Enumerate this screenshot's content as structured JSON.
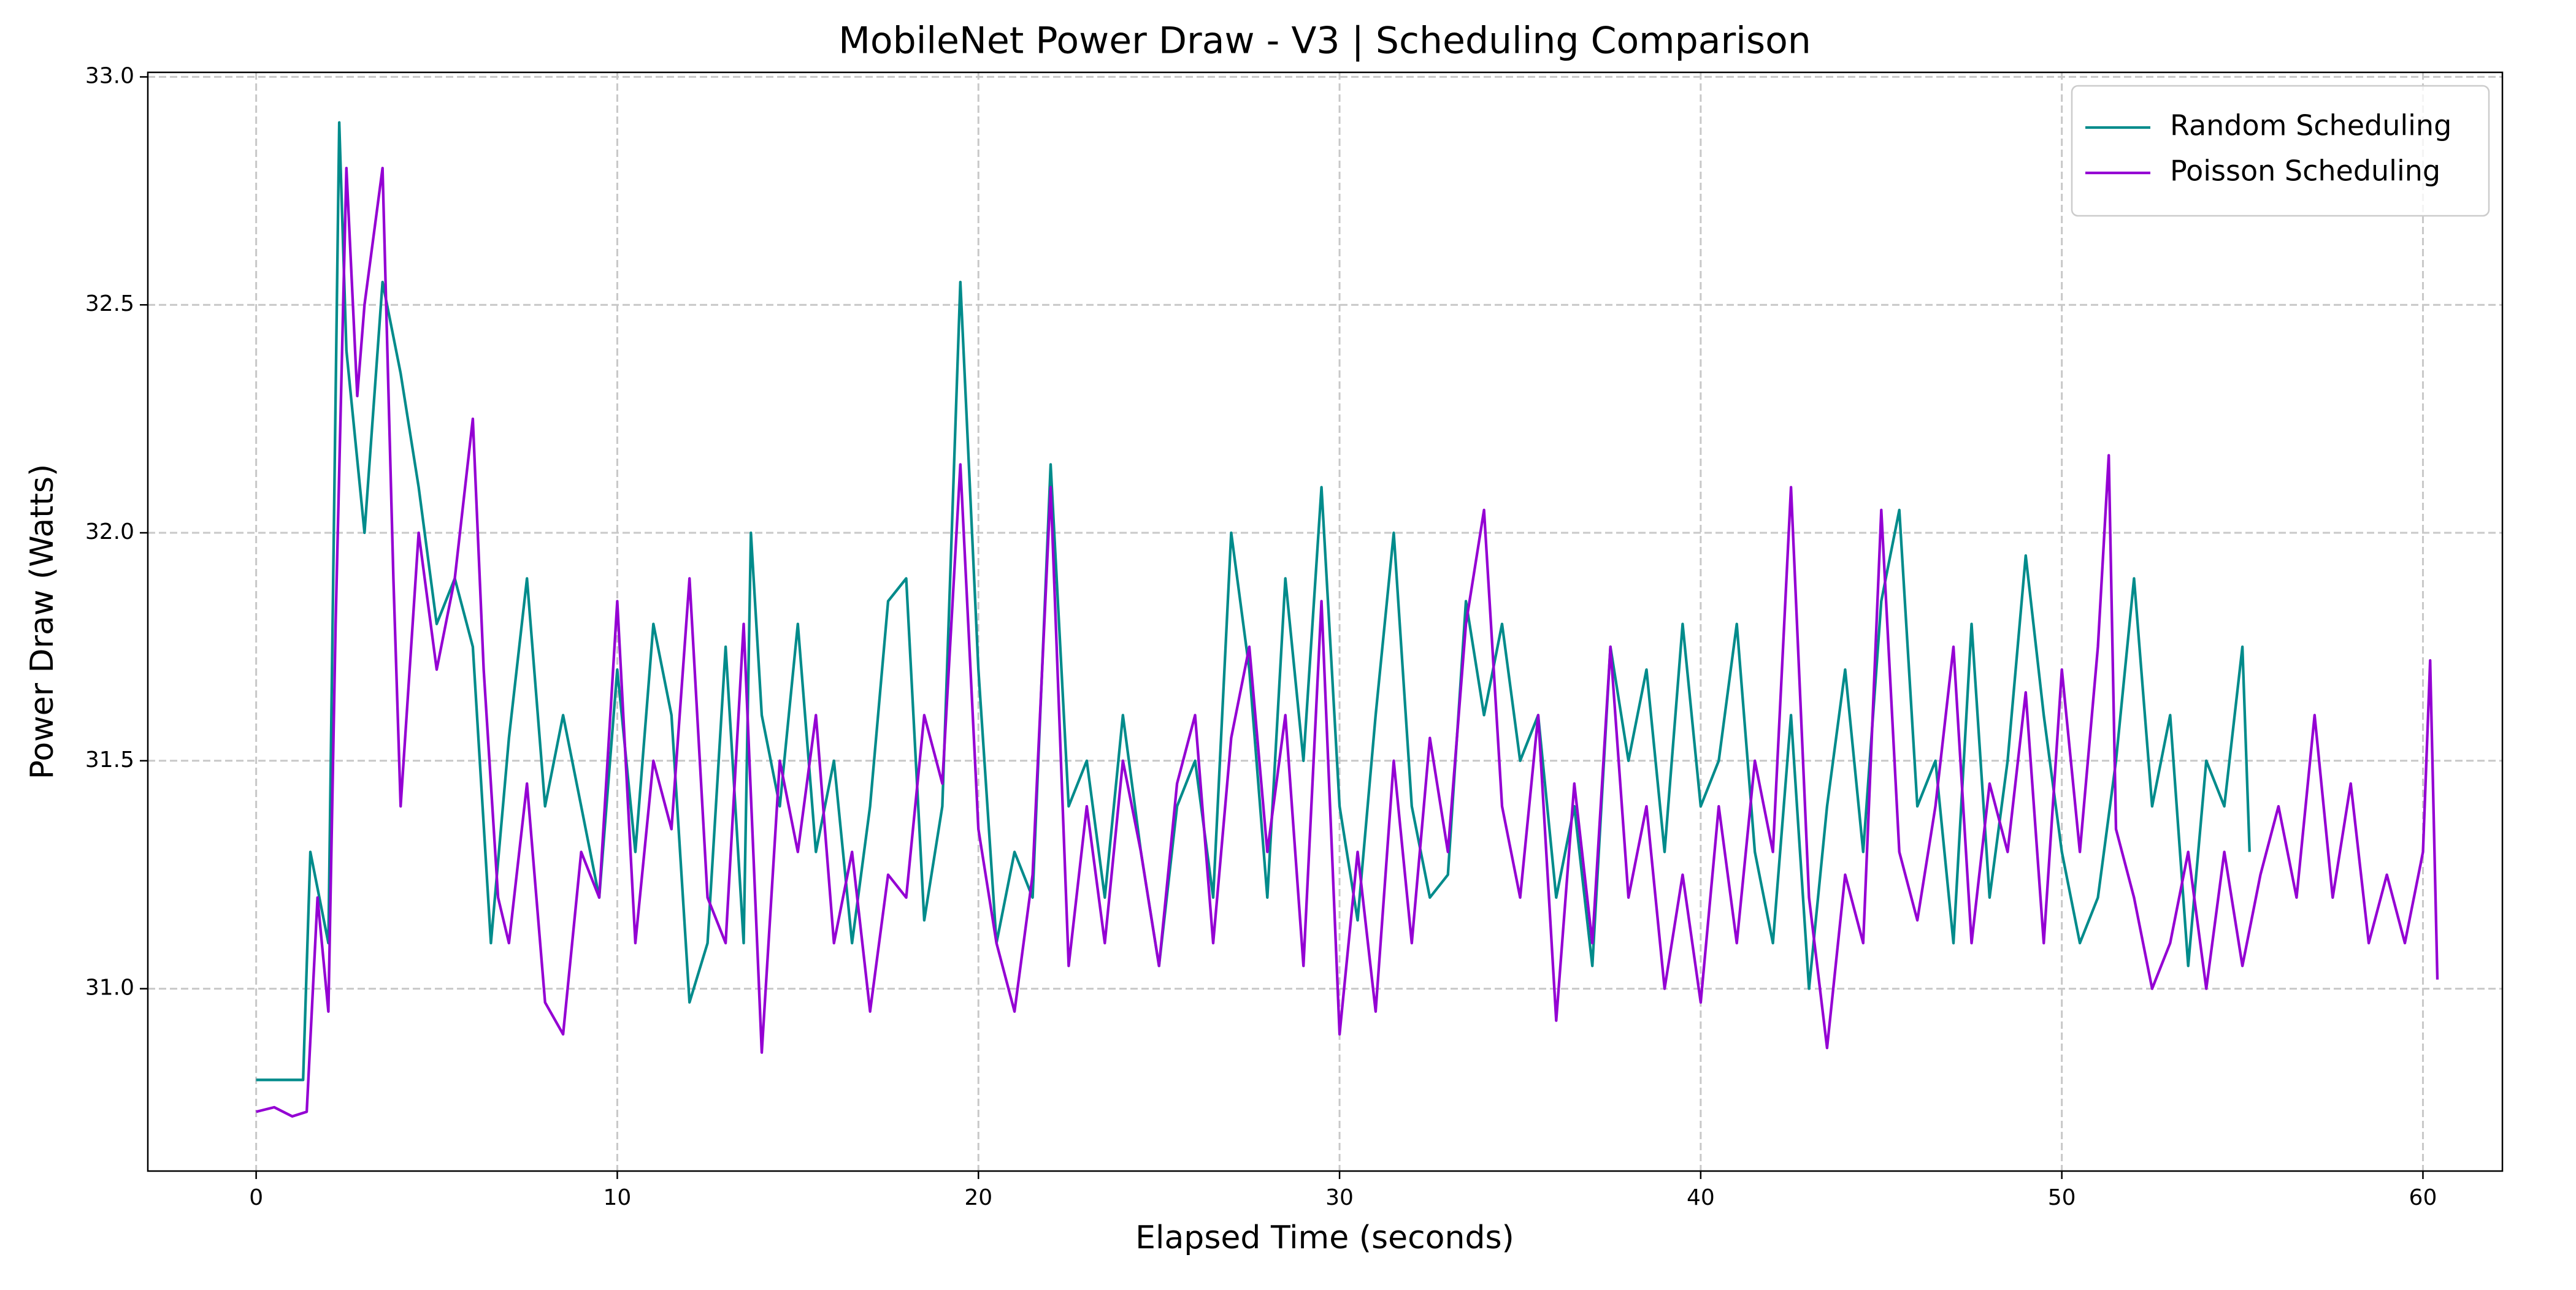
{
  "chart_data": {
    "type": "line",
    "title": "MobileNet Power Draw - V3 | Scheduling Comparison",
    "x_label": "Elapsed Time (seconds)",
    "y_label": "Power Draw (Watts)",
    "xlim": [
      -3.0,
      62.2
    ],
    "ylim": [
      30.6,
      33.01
    ],
    "xticks": [
      0,
      10,
      20,
      30,
      40,
      50,
      60
    ],
    "yticks": [
      {
        "value": 31,
        "label": "31.0"
      },
      31.5,
      {
        "value": 32,
        "label": "32.0"
      },
      32.5,
      {
        "value": 33,
        "label": "33.0"
      }
    ],
    "grid": true,
    "legend": "upper right",
    "series": [
      {
        "name": "Random Scheduling",
        "color": "#008b8b",
        "x": [
          0,
          0.5,
          1,
          1.3,
          1.5,
          2,
          2.3,
          2.5,
          3,
          3.5,
          4,
          4.5,
          5,
          5.5,
          6,
          6.5,
          7,
          7.5,
          8,
          8.5,
          9,
          9.5,
          10,
          10.5,
          11,
          11.5,
          12,
          12.5,
          13,
          13.5,
          13.7,
          14,
          14.5,
          15,
          15.5,
          16,
          16.5,
          17,
          17.5,
          18,
          18.5,
          19,
          19.5,
          20,
          20.5,
          21,
          21.5,
          22,
          22.5,
          23,
          23.5,
          24,
          24.5,
          25,
          25.5,
          26,
          26.5,
          27,
          27.5,
          28,
          28.5,
          29,
          29.5,
          30,
          30.5,
          31,
          31.5,
          32,
          32.5,
          33,
          33.5,
          34,
          34.5,
          35,
          35.5,
          36,
          36.5,
          37,
          37.5,
          38,
          38.5,
          39,
          39.5,
          40,
          40.5,
          41,
          41.5,
          42,
          42.5,
          43,
          43.5,
          44,
          44.5,
          45,
          45.5,
          46,
          46.5,
          47,
          47.5,
          48,
          48.5,
          49,
          49.5,
          50,
          50.5,
          51,
          51.5,
          52,
          52.5,
          53,
          53.5,
          54,
          54.5,
          55,
          55.2
        ],
        "values": [
          30.8,
          30.8,
          30.8,
          30.8,
          31.3,
          31.1,
          32.9,
          32.4,
          32.0,
          32.55,
          32.35,
          32.1,
          31.8,
          31.9,
          31.75,
          31.1,
          31.55,
          31.9,
          31.4,
          31.6,
          31.4,
          31.2,
          31.7,
          31.3,
          31.8,
          31.6,
          30.97,
          31.1,
          31.75,
          31.1,
          32.0,
          31.6,
          31.4,
          31.8,
          31.3,
          31.5,
          31.1,
          31.4,
          31.85,
          31.9,
          31.15,
          31.4,
          32.55,
          31.7,
          31.1,
          31.3,
          31.2,
          32.15,
          31.4,
          31.5,
          31.2,
          31.6,
          31.3,
          31.05,
          31.4,
          31.5,
          31.2,
          32.0,
          31.7,
          31.2,
          31.9,
          31.5,
          32.1,
          31.4,
          31.15,
          31.6,
          32.0,
          31.4,
          31.2,
          31.25,
          31.85,
          31.6,
          31.8,
          31.5,
          31.6,
          31.2,
          31.4,
          31.05,
          31.75,
          31.5,
          31.7,
          31.3,
          31.8,
          31.4,
          31.5,
          31.8,
          31.3,
          31.1,
          31.6,
          31.0,
          31.4,
          31.7,
          31.3,
          31.85,
          32.05,
          31.4,
          31.5,
          31.1,
          31.8,
          31.2,
          31.5,
          31.95,
          31.6,
          31.3,
          31.1,
          31.2,
          31.5,
          31.9,
          31.4,
          31.6,
          31.05,
          31.5,
          31.4,
          31.75,
          31.3
        ]
      },
      {
        "name": "Poisson Scheduling",
        "color": "#9400d3",
        "x": [
          0,
          0.5,
          1,
          1.4,
          1.7,
          2,
          2.2,
          2.5,
          2.8,
          3,
          3.5,
          3.8,
          4,
          4.5,
          5,
          5.5,
          6,
          6.3,
          6.7,
          7,
          7.5,
          8,
          8.5,
          9,
          9.5,
          10,
          10.5,
          11,
          11.5,
          12,
          12.5,
          13,
          13.5,
          14,
          14.5,
          15,
          15.5,
          16,
          16.5,
          17,
          17.5,
          18,
          18.5,
          19,
          19.5,
          20,
          20.5,
          21,
          21.5,
          22,
          22.5,
          23,
          23.5,
          24,
          24.5,
          25,
          25.5,
          26,
          26.5,
          27,
          27.5,
          28,
          28.5,
          29,
          29.5,
          30,
          30.5,
          31,
          31.5,
          32,
          32.5,
          33,
          33.5,
          34,
          34.5,
          35,
          35.5,
          36,
          36.5,
          37,
          37.5,
          38,
          38.5,
          39,
          39.5,
          40,
          40.5,
          41,
          41.5,
          42,
          42.5,
          43,
          43.5,
          44,
          44.5,
          45,
          45.5,
          46,
          46.5,
          47,
          47.5,
          48,
          48.5,
          49,
          49.5,
          50,
          50.5,
          51,
          51.3,
          51.5,
          52,
          52.5,
          53,
          53.5,
          54,
          54.5,
          55,
          55.5,
          56,
          56.5,
          57,
          57.5,
          58,
          58.5,
          59,
          59.5,
          60,
          60.2,
          60.4
        ],
        "values": [
          30.73,
          30.74,
          30.72,
          30.73,
          31.2,
          30.95,
          31.8,
          32.8,
          32.3,
          32.5,
          32.8,
          31.9,
          31.4,
          32.0,
          31.7,
          31.9,
          32.25,
          31.7,
          31.2,
          31.1,
          31.45,
          30.97,
          30.9,
          31.3,
          31.2,
          31.85,
          31.1,
          31.5,
          31.35,
          31.9,
          31.2,
          31.1,
          31.8,
          30.86,
          31.5,
          31.3,
          31.6,
          31.1,
          31.3,
          30.95,
          31.25,
          31.2,
          31.6,
          31.45,
          32.15,
          31.35,
          31.1,
          30.95,
          31.25,
          32.1,
          31.05,
          31.4,
          31.1,
          31.5,
          31.3,
          31.05,
          31.45,
          31.6,
          31.1,
          31.55,
          31.75,
          31.3,
          31.6,
          31.05,
          31.85,
          30.9,
          31.3,
          30.95,
          31.5,
          31.1,
          31.55,
          31.3,
          31.8,
          32.05,
          31.4,
          31.2,
          31.6,
          30.93,
          31.45,
          31.1,
          31.75,
          31.2,
          31.4,
          31.0,
          31.25,
          30.97,
          31.4,
          31.1,
          31.5,
          31.3,
          32.1,
          31.2,
          30.87,
          31.25,
          31.1,
          32.05,
          31.3,
          31.15,
          31.4,
          31.75,
          31.1,
          31.45,
          31.3,
          31.65,
          31.1,
          31.7,
          31.3,
          31.75,
          32.17,
          31.35,
          31.2,
          31.0,
          31.1,
          31.3,
          31.0,
          31.3,
          31.05,
          31.25,
          31.4,
          31.2,
          31.6,
          31.2,
          31.45,
          31.1,
          31.25,
          31.1,
          31.3,
          31.72,
          31.02
        ]
      }
    ]
  }
}
